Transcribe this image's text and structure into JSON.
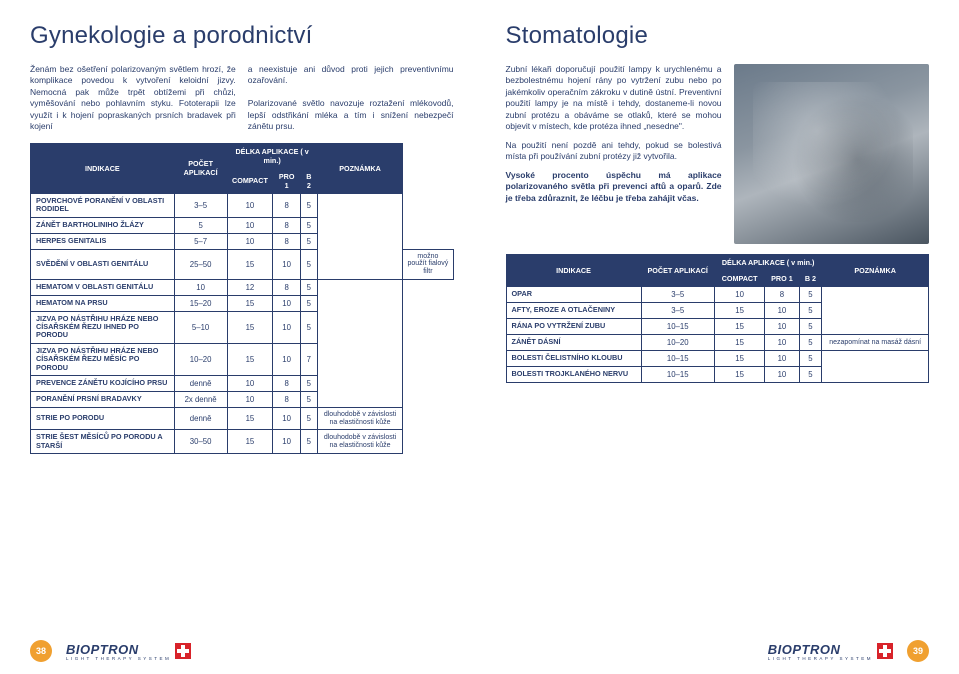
{
  "left": {
    "title": "Gynekologie a porodnictví",
    "para1": "Ženám bez ošetření polarizovaným světlem hrozí, že komplikace povedou k vytvoření keloidní jizvy. Nemocná pak může trpět obtížemi při chůzi, vyměšování nebo pohlavním styku. Fototerapii lze využít i k hojení popraskaných prsních bradavek při kojení",
    "para2a": "a neexistuje ani důvod proti jejich preventivnímu ozařování.",
    "para2b": "Polarizované světlo navozuje roztažení mlékovodů, lepší odstřikání mléka a tím i snížení nebezpečí zánětu prsu.",
    "th": {
      "ind": "INDIKACE",
      "count": "POČET APLIKACÍ",
      "dur": "DÉLKA APLIKACE ( v min.)",
      "c1": "COMPACT",
      "c2": "PRO 1",
      "c3": "B 2",
      "note": "POZNÁMKA"
    },
    "rows": [
      {
        "l": "POVRCHOVÉ PORANĚNÍ V OBLASTI RODIDEL",
        "a": "3–5",
        "b": "10",
        "c": "8",
        "d": "5",
        "n": "",
        "rs": 4
      },
      {
        "l": "ZÁNĚT BARTHOLINIHO ŽLÁZY",
        "a": "5",
        "b": "10",
        "c": "8",
        "d": "5"
      },
      {
        "l": "HERPES GENITALIS",
        "a": "5–7",
        "b": "10",
        "c": "8",
        "d": "5"
      },
      {
        "l": "SVĚDĚNÍ V OBLASTI GENITÁLU",
        "a": "25–50",
        "b": "15",
        "c": "10",
        "d": "5",
        "n": "možno použít fialový filtr",
        "rs": 1
      },
      {
        "l": "HEMATOM V OBLASTI GENITÁLU",
        "a": "10",
        "b": "12",
        "c": "8",
        "d": "5",
        "n": "",
        "rs": 6
      },
      {
        "l": "HEMATOM NA PRSU",
        "a": "15–20",
        "b": "15",
        "c": "10",
        "d": "5"
      },
      {
        "l": "JIZVA PO NÁSTŘIHU HRÁZE NEBO CÍSAŘSKÉM ŘEZU IHNED PO PORODU",
        "a": "5–10",
        "b": "15",
        "c": "10",
        "d": "5"
      },
      {
        "l": "JIZVA PO NÁSTŘIHU HRÁZE NEBO CÍSAŘSKÉM ŘEZU MĚSÍC PO PORODU",
        "a": "10–20",
        "b": "15",
        "c": "10",
        "d": "7"
      },
      {
        "l": "PREVENCE ZÁNĚTU KOJÍCÍHO PRSU",
        "a": "denně",
        "b": "10",
        "c": "8",
        "d": "5"
      },
      {
        "l": "PORANĚNÍ PRSNÍ BRADAVKY",
        "a": "2x denně",
        "b": "10",
        "c": "8",
        "d": "5"
      },
      {
        "l": "STRIE PO PORODU",
        "a": "denně",
        "b": "15",
        "c": "10",
        "d": "5",
        "n": "dlouhodobě v závislosti na elastičnosti kůže",
        "rs": 1
      },
      {
        "l": "STRIE ŠEST MĚSÍCŮ PO PORODU A STARŠÍ",
        "a": "30–50",
        "b": "15",
        "c": "10",
        "d": "5",
        "n": "dlouhodobě v závislosti na elastičnosti kůže",
        "rs": 1
      }
    ],
    "pagenum": "38"
  },
  "right": {
    "title": "Stomatologie",
    "p1": "Zubní lékaři doporučují použití lampy k urychlenému a bezbolestnému hojení rány po vytržení zubu nebo po jakémkoliv operačním zákroku v dutině ústní. Preventivní použití lampy je na místě i tehdy, dostaneme-li novou zubní protézu a obáváme se otlaků, které se mohou objevit v místech, kde protéza ihned „nesedne\".",
    "p2": "Na použití není pozdě ani tehdy, pokud se bolestivá místa při používání zubní protézy již vytvořila.",
    "p3": "Vysoké procento úspěchu má aplikace polarizovaného světla při prevenci aftů a oparů. Zde je třeba zdůraznit, že léčbu je třeba zahájit včas.",
    "th": {
      "ind": "INDIKACE",
      "count": "POČET APLIKACÍ",
      "dur": "DÉLKA APLIKACE ( v min.)",
      "c1": "COMPACT",
      "c2": "PRO 1",
      "c3": "B 2",
      "note": "POZNÁMKA"
    },
    "rows": [
      {
        "l": "OPAR",
        "a": "3–5",
        "b": "10",
        "c": "8",
        "d": "5",
        "n": "",
        "rs": 3
      },
      {
        "l": "AFTY, EROZE A OTLAČENINY",
        "a": "3–5",
        "b": "15",
        "c": "10",
        "d": "5"
      },
      {
        "l": "RÁNA PO VYTRŽENÍ ZUBU",
        "a": "10–15",
        "b": "15",
        "c": "10",
        "d": "5"
      },
      {
        "l": "ZÁNĚT DÁSNÍ",
        "a": "10–20",
        "b": "15",
        "c": "10",
        "d": "5",
        "n": "nezapomínat na masáž dásní",
        "rs": 1
      },
      {
        "l": "BOLESTI ČELISTNÍHO KLOUBU",
        "a": "10–15",
        "b": "15",
        "c": "10",
        "d": "5",
        "n": "",
        "rs": 2
      },
      {
        "l": "BOLESTI TROJKLANÉHO NERVU",
        "a": "10–15",
        "b": "15",
        "c": "10",
        "d": "5"
      }
    ],
    "pagenum": "39"
  },
  "brand": "BIOPTRON",
  "brand_sub": "LIGHT THERAPY SYSTEM"
}
